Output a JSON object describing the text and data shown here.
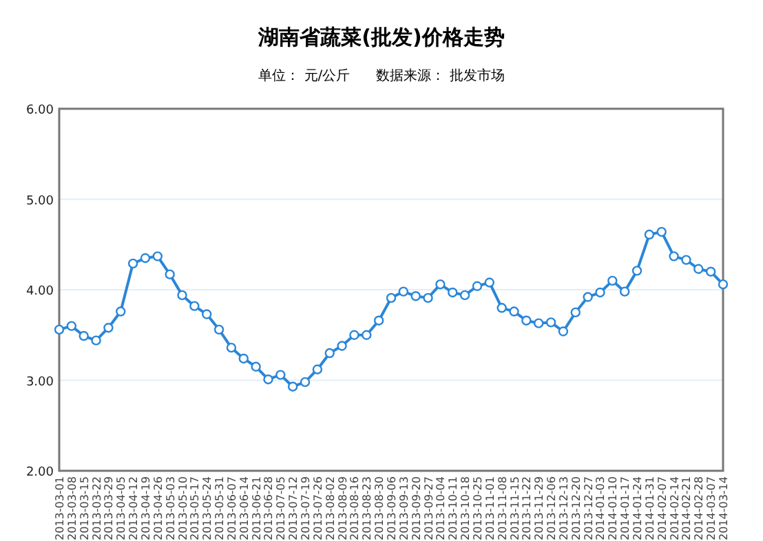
{
  "chart_data": {
    "type": "line",
    "title": "湖南省蔬菜(批发)价格走势",
    "subtitle": "单位： 元/公斤      数据来源： 批发市场",
    "categories": [
      "2013-03-01",
      "2013-03-08",
      "2013-03-15",
      "2013-03-22",
      "2013-03-29",
      "2013-04-05",
      "2013-04-12",
      "2013-04-19",
      "2013-04-26",
      "2013-05-03",
      "2013-05-10",
      "2013-05-17",
      "2013-05-24",
      "2013-05-31",
      "2013-06-07",
      "2013-06-14",
      "2013-06-21",
      "2013-06-28",
      "2013-07-05",
      "2013-07-12",
      "2013-07-19",
      "2013-07-26",
      "2013-08-02",
      "2013-08-09",
      "2013-08-16",
      "2013-08-23",
      "2013-08-30",
      "2013-09-06",
      "2013-09-13",
      "2013-09-20",
      "2013-09-27",
      "2013-10-04",
      "2013-10-11",
      "2013-10-18",
      "2013-10-25",
      "2013-11-01",
      "2013-11-08",
      "2013-11-15",
      "2013-11-22",
      "2013-11-29",
      "2013-12-06",
      "2013-12-13",
      "2013-12-20",
      "2013-12-27",
      "2014-01-03",
      "2014-01-10",
      "2014-01-17",
      "2014-01-24",
      "2014-01-31",
      "2014-02-07",
      "2014-02-14",
      "2014-02-21",
      "2014-02-28",
      "2014-03-07",
      "2014-03-14"
    ],
    "series": [
      {
        "color": "#2a86d8",
        "values": [
          3.56,
          3.6,
          3.49,
          3.44,
          3.58,
          3.76,
          4.29,
          4.35,
          4.37,
          4.17,
          3.94,
          3.82,
          3.73,
          3.56,
          3.36,
          3.24,
          3.15,
          3.01,
          3.06,
          2.93,
          2.98,
          3.12,
          3.3,
          3.38,
          3.5,
          3.5,
          3.66,
          3.91,
          3.98,
          3.93,
          3.91,
          4.06,
          3.97,
          3.94,
          4.04,
          4.08,
          3.8,
          3.76,
          3.66,
          3.63,
          3.64,
          3.54,
          3.75,
          3.92,
          3.97,
          4.1,
          3.98,
          4.21,
          4.61,
          4.64,
          4.37,
          4.33,
          4.23,
          4.2,
          4.06
        ]
      }
    ],
    "ylim": [
      2,
      6
    ],
    "yticks": [
      {
        "value": 2,
        "label": "2.00"
      },
      {
        "value": 3,
        "label": "3.00"
      },
      {
        "value": 4,
        "label": "4.00"
      },
      {
        "value": 5,
        "label": "5.00"
      },
      {
        "value": 6,
        "label": "6.00"
      }
    ],
    "grid": "y",
    "marker": "circle",
    "line_style": "solid"
  }
}
